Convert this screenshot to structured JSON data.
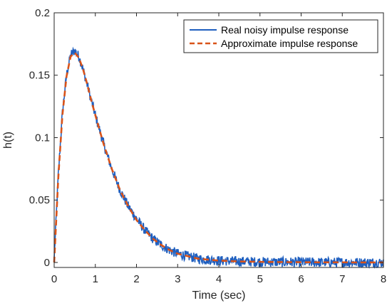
{
  "colors": {
    "real_series": "#1f5fbf",
    "approx_series": "#d95319",
    "axis": "#262626",
    "background": "#ffffff"
  },
  "chart_data": {
    "type": "line",
    "title": "",
    "xlabel": "Time (sec)",
    "ylabel": "h(t)",
    "xlim": [
      0,
      8
    ],
    "ylim": [
      -0.004,
      0.2
    ],
    "x_ticks": [
      0,
      1,
      2,
      3,
      4,
      5,
      6,
      7,
      8
    ],
    "x_tick_labels": [
      "0",
      "1",
      "2",
      "3",
      "4",
      "5",
      "6",
      "7",
      "8"
    ],
    "y_ticks": [
      0,
      0.05,
      0.1,
      0.15,
      0.2
    ],
    "y_tick_labels": [
      "0",
      "0.05",
      "0.1",
      "0.15",
      "0.2"
    ],
    "grid": false,
    "legend_position": "top-right",
    "peak": {
      "x": 0.46,
      "y": 0.17
    },
    "noise_amplitude": 0.004,
    "series": [
      {
        "name": "Real noisy impulse response",
        "style": "solid",
        "x": [
          0,
          0.1,
          0.2,
          0.3,
          0.4,
          0.5,
          0.6,
          0.7,
          0.8,
          0.9,
          1.0,
          1.2,
          1.4,
          1.6,
          1.8,
          2.0,
          2.2,
          2.4,
          2.6,
          2.8,
          3.0,
          3.5,
          4.0,
          4.5,
          5.0,
          5.5,
          6.0,
          6.5,
          7.0,
          7.5,
          8.0
        ],
        "values": [
          0.003,
          0.07,
          0.12,
          0.15,
          0.166,
          0.17,
          0.165,
          0.155,
          0.143,
          0.13,
          0.118,
          0.095,
          0.075,
          0.058,
          0.045,
          0.035,
          0.026,
          0.019,
          0.014,
          0.01,
          0.007,
          0.003,
          0.0015,
          0.0008,
          0.0005,
          0.0003,
          0.0002,
          0.0001,
          0.0001,
          0.0,
          0.0
        ]
      },
      {
        "name": "Approximate impulse response",
        "style": "dashed",
        "x": [
          0,
          0.1,
          0.2,
          0.3,
          0.4,
          0.5,
          0.6,
          0.7,
          0.8,
          0.9,
          1.0,
          1.2,
          1.4,
          1.6,
          1.8,
          2.0,
          2.2,
          2.4,
          2.6,
          2.8,
          3.0,
          3.5,
          4.0,
          4.5,
          5.0,
          5.5,
          6.0,
          6.5,
          7.0,
          7.5,
          8.0
        ],
        "values": [
          0.0,
          0.068,
          0.118,
          0.149,
          0.165,
          0.168,
          0.164,
          0.155,
          0.143,
          0.13,
          0.118,
          0.095,
          0.075,
          0.058,
          0.045,
          0.034,
          0.026,
          0.019,
          0.014,
          0.01,
          0.007,
          0.003,
          0.0015,
          0.0008,
          0.0005,
          0.0003,
          0.0002,
          0.0001,
          0.0001,
          0.0,
          0.0
        ]
      }
    ]
  }
}
